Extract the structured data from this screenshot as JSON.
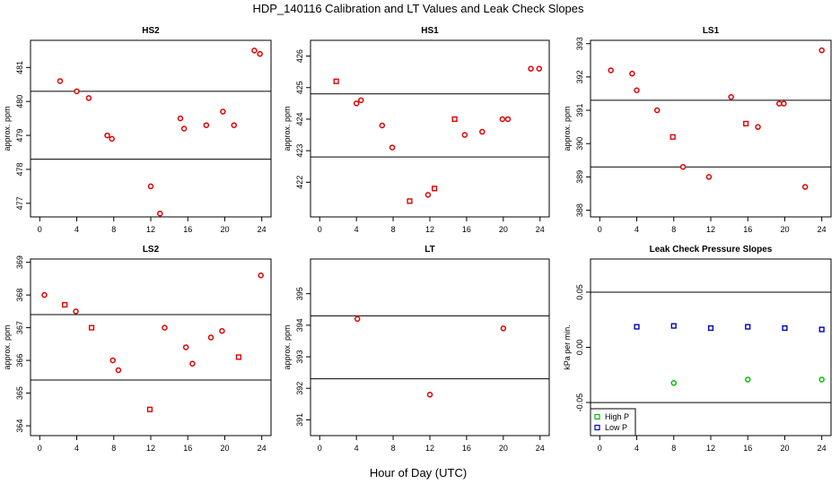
{
  "figure": {
    "title": "HDP_140116  Calibration and LT Values and Leak Check Slopes",
    "xlabel": "Hour of Day (UTC)"
  },
  "chart_data": [
    {
      "type": "scatter",
      "title": "HS2",
      "ylabel": "approx. ppm",
      "xlim": [
        -1,
        25
      ],
      "ylim": [
        476.6,
        481.8
      ],
      "xticks": [
        "0",
        "4",
        "8",
        "12",
        "16",
        "20",
        "24"
      ],
      "xtick_values": [
        0,
        4,
        8,
        12,
        16,
        20,
        24
      ],
      "yticks": [
        "477",
        "478",
        "479",
        "480",
        "481"
      ],
      "ytick_values": [
        477,
        478,
        479,
        480,
        481
      ],
      "hlines": [
        480.3,
        478.3
      ],
      "series": [
        {
          "marker": "circle",
          "color": "#e00000",
          "x": [
            2.2,
            4.0,
            5.3,
            7.3,
            7.8,
            12.0,
            13.0,
            15.2,
            15.6,
            18.0,
            19.8,
            21.0,
            23.2,
            23.8
          ],
          "y": [
            480.6,
            480.3,
            480.1,
            479.0,
            478.9,
            477.5,
            476.7,
            479.5,
            479.2,
            479.3,
            479.7,
            479.3,
            481.5,
            481.4
          ]
        }
      ]
    },
    {
      "type": "scatter",
      "title": "HS1",
      "ylabel": "approx. ppm",
      "xlim": [
        -1,
        25
      ],
      "ylim": [
        420.9,
        426.5
      ],
      "xticks": [
        "0",
        "4",
        "8",
        "12",
        "16",
        "20",
        "24"
      ],
      "xtick_values": [
        0,
        4,
        8,
        12,
        16,
        20,
        24
      ],
      "yticks": [
        "422",
        "423",
        "424",
        "425",
        "426"
      ],
      "ytick_values": [
        422,
        423,
        424,
        425,
        426
      ],
      "hlines": [
        424.8,
        422.8
      ],
      "series": [
        {
          "marker": "circle",
          "color": "#e00000",
          "x": [
            4.0,
            4.5,
            6.8,
            7.9,
            11.8,
            15.8,
            17.7,
            19.9,
            20.5,
            23.0,
            23.9
          ],
          "y": [
            424.5,
            424.6,
            423.8,
            423.1,
            421.6,
            423.5,
            423.6,
            424.0,
            424.0,
            425.6,
            425.6
          ]
        },
        {
          "marker": "square",
          "color": "#e00000",
          "x": [
            1.8,
            9.8,
            12.5,
            14.7
          ],
          "y": [
            425.2,
            421.4,
            421.8,
            424.0
          ]
        }
      ]
    },
    {
      "type": "scatter",
      "title": "LS1",
      "ylabel": "approx. ppm",
      "xlim": [
        -1,
        25
      ],
      "ylim": [
        387.8,
        393.1
      ],
      "xticks": [
        "0",
        "4",
        "8",
        "12",
        "16",
        "20",
        "24"
      ],
      "xtick_values": [
        0,
        4,
        8,
        12,
        16,
        20,
        24
      ],
      "yticks": [
        "388",
        "389",
        "390",
        "391",
        "392",
        "393"
      ],
      "ytick_values": [
        388,
        389,
        390,
        391,
        392,
        393
      ],
      "hlines": [
        391.3,
        389.3
      ],
      "series": [
        {
          "marker": "circle",
          "color": "#e00000",
          "x": [
            1.2,
            3.5,
            4.0,
            6.2,
            9.0,
            11.8,
            14.2,
            17.1,
            19.4,
            19.9,
            22.2,
            24.0
          ],
          "y": [
            392.2,
            392.1,
            391.6,
            391.0,
            389.3,
            389.0,
            391.4,
            390.5,
            391.2,
            391.2,
            388.7,
            392.8
          ]
        },
        {
          "marker": "square",
          "color": "#e00000",
          "x": [
            7.9,
            15.8
          ],
          "y": [
            390.2,
            390.6
          ]
        }
      ]
    },
    {
      "type": "scatter",
      "title": "LS2",
      "ylabel": "approx. ppm",
      "xlim": [
        -1,
        25
      ],
      "ylim": [
        363.7,
        369.1
      ],
      "xticks": [
        "0",
        "4",
        "8",
        "12",
        "16",
        "20",
        "24"
      ],
      "xtick_values": [
        0,
        4,
        8,
        12,
        16,
        20,
        24
      ],
      "yticks": [
        "364",
        "365",
        "366",
        "367",
        "368",
        "369"
      ],
      "ytick_values": [
        364,
        365,
        366,
        367,
        368,
        369
      ],
      "hlines": [
        367.4,
        365.4
      ],
      "series": [
        {
          "marker": "circle",
          "color": "#e00000",
          "x": [
            0.5,
            3.9,
            7.9,
            8.5,
            13.5,
            15.8,
            16.5,
            18.5,
            19.7,
            23.9
          ],
          "y": [
            368.0,
            367.5,
            366.0,
            365.7,
            367.0,
            366.4,
            365.9,
            366.7,
            366.9,
            368.6
          ]
        },
        {
          "marker": "square",
          "color": "#e00000",
          "x": [
            2.7,
            5.6,
            11.9,
            21.5
          ],
          "y": [
            367.7,
            367.0,
            364.5,
            366.1
          ]
        }
      ]
    },
    {
      "type": "scatter",
      "title": "LT",
      "ylabel": "approx. ppm",
      "xlim": [
        -1,
        25
      ],
      "ylim": [
        390.5,
        396.1
      ],
      "xticks": [
        "0",
        "4",
        "8",
        "12",
        "16",
        "20",
        "24"
      ],
      "xtick_values": [
        0,
        4,
        8,
        12,
        16,
        20,
        24
      ],
      "yticks": [
        "391",
        "392",
        "393",
        "394",
        "395"
      ],
      "ytick_values": [
        391,
        392,
        393,
        394,
        395
      ],
      "hlines": [
        394.3,
        392.3
      ],
      "series": [
        {
          "marker": "circle",
          "color": "#e00000",
          "x": [
            4.1,
            12.0,
            20.0
          ],
          "y": [
            394.2,
            391.8,
            393.9
          ]
        }
      ]
    },
    {
      "type": "scatter",
      "title": "Leak Check Pressure Slopes",
      "ylabel": "kPa per min.",
      "xlim": [
        -1,
        25
      ],
      "ylim": [
        -0.08,
        0.08
      ],
      "xticks": [
        "0",
        "4",
        "8",
        "12",
        "16",
        "20",
        "24"
      ],
      "xtick_values": [
        0,
        4,
        8,
        12,
        16,
        20,
        24
      ],
      "yticks": [
        "-0.05",
        "0.00",
        "0.05"
      ],
      "ytick_values": [
        -0.05,
        0,
        0.05
      ],
      "hlines": [
        0.05,
        -0.05
      ],
      "legend": {
        "position": "bottom-left",
        "entries": [
          {
            "label": "High P",
            "color": "#00c000",
            "marker": "square"
          },
          {
            "label": "Low P",
            "color": "#0000c0",
            "marker": "square"
          }
        ]
      },
      "series": [
        {
          "name": "Low P",
          "marker": "square",
          "color": "#0000c0",
          "x": [
            4,
            8,
            12,
            16,
            20,
            24
          ],
          "y": [
            0.0186,
            0.0194,
            0.0174,
            0.0186,
            0.0174,
            0.0162
          ]
        },
        {
          "name": "High P",
          "marker": "circle",
          "color": "#00c000",
          "x": [
            8,
            16,
            24
          ],
          "y": [
            -0.0323,
            -0.0292,
            -0.0292
          ]
        }
      ]
    }
  ]
}
